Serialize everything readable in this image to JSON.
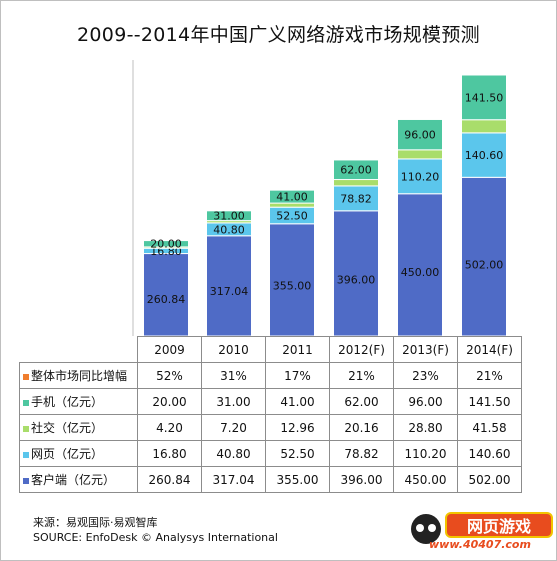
{
  "chart_data": {
    "type": "bar",
    "stacked": true,
    "title": "2009--2014年中国广义网络游戏市场规模预测",
    "categories": [
      "2009",
      "2010",
      "2011",
      "2012(F)",
      "2013(F)",
      "2014(F)"
    ],
    "series": [
      {
        "name": "客户端（亿元）",
        "color": "#4f6bc6",
        "values": [
          260.84,
          317.04,
          355.0,
          396.0,
          450.0,
          502.0
        ]
      },
      {
        "name": "网页（亿元）",
        "color": "#5bc6ec",
        "values": [
          16.8,
          40.8,
          52.5,
          78.82,
          110.2,
          140.6
        ]
      },
      {
        "name": "社交（亿元）",
        "color": "#a9dd6b",
        "values": [
          4.2,
          7.2,
          12.96,
          20.16,
          28.8,
          41.58
        ]
      },
      {
        "name": "手机（亿元）",
        "color": "#4ec7a0",
        "values": [
          20.0,
          31.0,
          41.0,
          62.0,
          96.0,
          141.5
        ]
      }
    ],
    "bar_labels": {
      "客户端（亿元）": [
        "260.84",
        "317.04",
        "355.00",
        "396.00",
        "450.00",
        "502.00"
      ],
      "网页（亿元）": [
        "16.80",
        "40.80",
        "52.50",
        "78.82",
        "110.20",
        "140.60"
      ],
      "手机（亿元）": [
        "20.00",
        "31.00",
        "41.00",
        "62.00",
        "96.00",
        "141.50"
      ]
    },
    "total_max": 825.68,
    "legend": "table-bottom",
    "grid": false,
    "table": {
      "columns": [
        "2009",
        "2010",
        "2011",
        "2012(F)",
        "2013(F)",
        "2014(F)"
      ],
      "rows": [
        {
          "label": "整体市场同比增幅",
          "color": "#f07d2d",
          "values": [
            "52%",
            "31%",
            "17%",
            "21%",
            "23%",
            "21%"
          ]
        },
        {
          "label": "手机（亿元）",
          "color": "#4ec7a0",
          "values": [
            "20.00",
            "31.00",
            "41.00",
            "62.00",
            "96.00",
            "141.50"
          ]
        },
        {
          "label": "社交（亿元）",
          "color": "#a9dd6b",
          "values": [
            "4.20",
            "7.20",
            "12.96",
            "20.16",
            "28.80",
            "41.58"
          ]
        },
        {
          "label": "网页（亿元）",
          "color": "#5bc6ec",
          "values": [
            "16.80",
            "40.80",
            "52.50",
            "78.82",
            "110.20",
            "140.60"
          ]
        },
        {
          "label": "客户端（亿元）",
          "color": "#4f6bc6",
          "values": [
            "260.84",
            "317.04",
            "355.00",
            "396.00",
            "450.00",
            "502.00"
          ]
        }
      ]
    }
  },
  "source": {
    "line1": "来源：易观国际·易观智库",
    "line2": "SOURCE: EnfoDesk © Analysys International"
  },
  "watermark": {
    "badge": "网页游戏",
    "url": "www.40407.com"
  }
}
